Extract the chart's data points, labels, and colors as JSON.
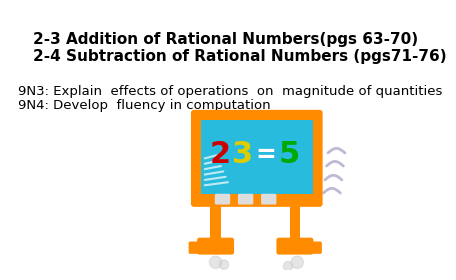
{
  "background_color": "#ffffff",
  "title_line1": "2-3 Addition of Rational Numbers(pgs 63-70)",
  "title_line2": "2-4 Subtraction of Rational Numbers (pgs71-76)",
  "body_line1": "9N3: Explain  effects of operations  on  magnitude of quantities",
  "body_line2": "9N4: Develop  fluency in computation",
  "title_fontsize": 11.0,
  "body_fontsize": 9.5,
  "title_color": "#000000",
  "body_color": "#000000",
  "board_frame_color": "#FF8C00",
  "board_screen_color": "#29BBDD",
  "num2_color": "#CC0000",
  "num3_color": "#DDCC00",
  "num5_color": "#00AA00",
  "equals_color": "#FFFFFF",
  "vib_color": "#aaaacc"
}
